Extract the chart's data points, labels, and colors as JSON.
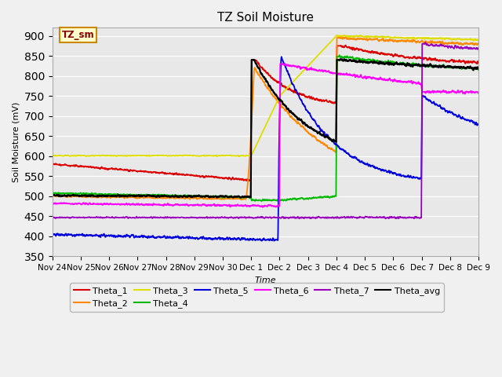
{
  "title": "TZ Soil Moisture",
  "xlabel": "Time",
  "ylabel": "Soil Moisture (mV)",
  "ylim": [
    350,
    920
  ],
  "yticks": [
    350,
    400,
    450,
    500,
    550,
    600,
    650,
    700,
    750,
    800,
    850,
    900
  ],
  "fig_bg": "#f0f0f0",
  "plot_bg": "#e8e8e8",
  "grid_color": "#ffffff",
  "legend_label": "TZ_sm",
  "series_colors": {
    "Theta_1": "#dd0000",
    "Theta_2": "#ff8800",
    "Theta_3": "#dddd00",
    "Theta_4": "#00bb00",
    "Theta_5": "#0000dd",
    "Theta_6": "#ff00ff",
    "Theta_7": "#9900bb",
    "Theta_avg": "#000000"
  },
  "x_labels": [
    "Nov 24",
    "Nov 25",
    "Nov 26",
    "Nov 27",
    "Nov 28",
    "Nov 29",
    "Nov 30",
    "Dec 1",
    "Dec 2",
    "Dec 3",
    "Dec 4",
    "Dec 5",
    "Dec 6",
    "Dec 7",
    "Dec 8",
    "Dec 9"
  ]
}
